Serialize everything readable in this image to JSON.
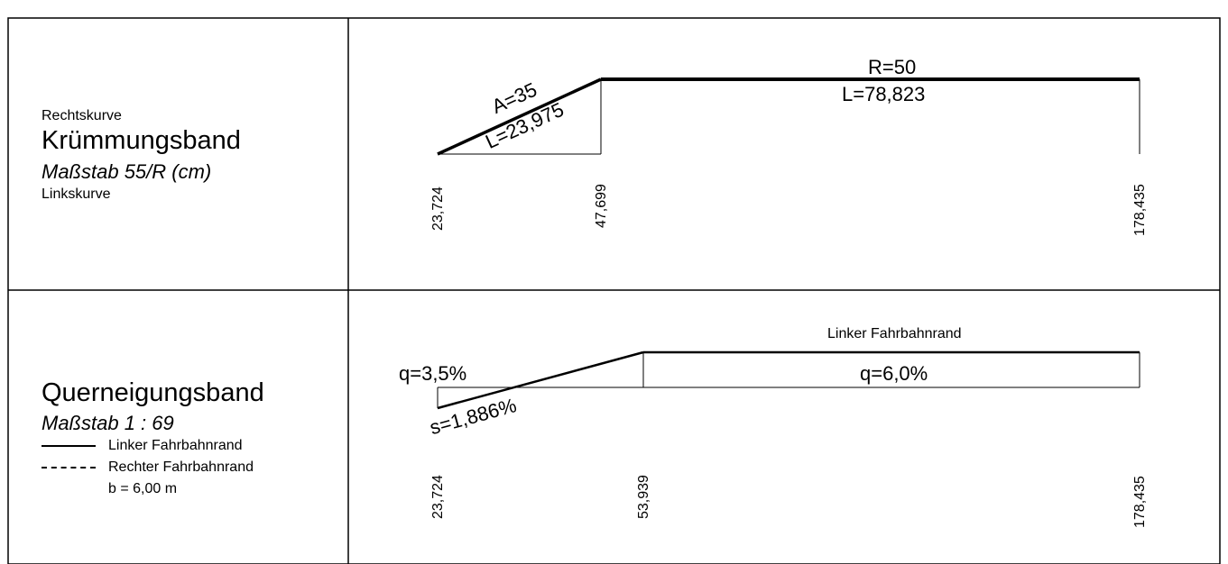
{
  "kruemmung": {
    "left_top": "Rechtskurve",
    "title": "Krümmungsband",
    "scale": "Maßstab 55/R (cm)",
    "left_bottom": "Linkskurve",
    "labels": {
      "clothoid_param": "A=35",
      "clothoid_length": "L=23,975",
      "radius": "R=50",
      "arc_length": "L=78,823"
    },
    "stations": [
      "23,724",
      "47,699",
      "178,435"
    ]
  },
  "querneigung": {
    "title": "Querneigungsband",
    "scale": "Maßstab 1 : 69",
    "legend": {
      "left_edge": "Linker Fahrbahnrand",
      "right_edge": "Rechter Fahrbahnrand",
      "width": "b = 6,00 m"
    },
    "labels": {
      "edge_label": "Linker Fahrbahnrand",
      "q_start": "q=3,5%",
      "q_end": "q=6,0%",
      "slope": "s=1,886%"
    },
    "stations": [
      "23,724",
      "53,939",
      "178,435"
    ]
  }
}
